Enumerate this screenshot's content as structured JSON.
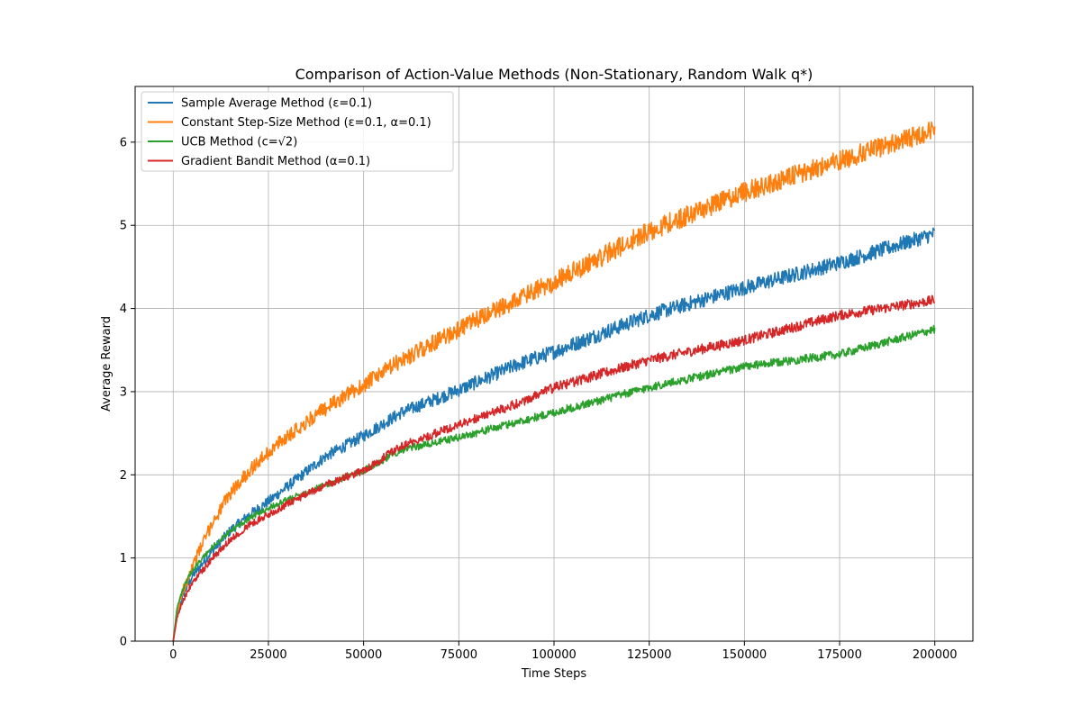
{
  "chart_data": {
    "type": "line",
    "title": "Comparison of Action-Value Methods (Non-Stationary, Random Walk q*)",
    "xlabel": "Time Steps",
    "ylabel": "Average Reward",
    "xlim": [
      -10000,
      210000
    ],
    "ylim": [
      0,
      6.67
    ],
    "grid": true,
    "legend_position": "top-left",
    "x_ticks": [
      0,
      25000,
      50000,
      75000,
      100000,
      125000,
      150000,
      175000,
      200000
    ],
    "x_tick_labels": [
      "0",
      "25000",
      "50000",
      "75000",
      "100000",
      "125000",
      "150000",
      "175000",
      "200000"
    ],
    "y_ticks": [
      0,
      1,
      2,
      3,
      4,
      5,
      6
    ],
    "y_tick_labels": [
      "0",
      "1",
      "2",
      "3",
      "4",
      "5",
      "6"
    ],
    "x": [
      0,
      1000,
      2500,
      5000,
      10000,
      15000,
      20000,
      25000,
      30000,
      40000,
      50000,
      60000,
      75000,
      90000,
      100000,
      125000,
      150000,
      175000,
      200000
    ],
    "series": [
      {
        "name": "Sample Average Method (ε=0.1)",
        "color": "#1f77b4",
        "noise": 0.09,
        "values": [
          0.0,
          0.3,
          0.55,
          0.78,
          1.07,
          1.33,
          1.52,
          1.68,
          1.86,
          2.22,
          2.47,
          2.75,
          3.02,
          3.32,
          3.48,
          3.92,
          4.25,
          4.55,
          4.9
        ]
      },
      {
        "name": "Constant Step-Size Method (ε=0.1, α=0.1)",
        "color": "#ff7f0e",
        "noise": 0.12,
        "values": [
          0.0,
          0.35,
          0.6,
          0.9,
          1.4,
          1.78,
          2.05,
          2.27,
          2.47,
          2.8,
          3.08,
          3.38,
          3.75,
          4.1,
          4.32,
          4.93,
          5.4,
          5.78,
          6.15
        ]
      },
      {
        "name": "UCB Method (c=√2)",
        "color": "#2ca02c",
        "noise": 0.05,
        "values": [
          0.0,
          0.4,
          0.62,
          0.85,
          1.12,
          1.32,
          1.48,
          1.6,
          1.7,
          1.88,
          2.05,
          2.3,
          2.45,
          2.63,
          2.75,
          3.05,
          3.3,
          3.45,
          3.75
        ]
      },
      {
        "name": "Gradient Bandit Method (α=0.1)",
        "color": "#d62728",
        "noise": 0.06,
        "values": [
          0.0,
          0.28,
          0.48,
          0.7,
          0.98,
          1.22,
          1.4,
          1.52,
          1.65,
          1.88,
          2.05,
          2.35,
          2.6,
          2.85,
          3.05,
          3.38,
          3.62,
          3.92,
          4.1
        ]
      }
    ]
  }
}
